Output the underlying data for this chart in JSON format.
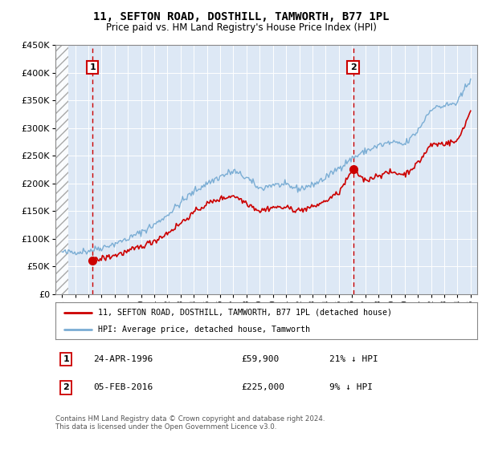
{
  "title": "11, SEFTON ROAD, DOSTHILL, TAMWORTH, B77 1PL",
  "subtitle": "Price paid vs. HM Land Registry's House Price Index (HPI)",
  "legend_line1": "11, SEFTON ROAD, DOSTHILL, TAMWORTH, B77 1PL (detached house)",
  "legend_line2": "HPI: Average price, detached house, Tamworth",
  "annotation1": "24-APR-1996",
  "annotation1_price": "£59,900",
  "annotation1_hpi": "21% ↓ HPI",
  "annotation2": "05-FEB-2016",
  "annotation2_price": "£225,000",
  "annotation2_hpi": "9% ↓ HPI",
  "footnote": "Contains HM Land Registry data © Crown copyright and database right 2024.\nThis data is licensed under the Open Government Licence v3.0.",
  "sale1_x": 1996.31,
  "sale1_y": 59900,
  "sale2_x": 2016.09,
  "sale2_y": 225000,
  "ylim": [
    0,
    450000
  ],
  "xlim": [
    1993.5,
    2025.5
  ],
  "yticks": [
    0,
    50000,
    100000,
    150000,
    200000,
    250000,
    300000,
    350000,
    400000,
    450000
  ],
  "xticks": [
    1994,
    1995,
    1996,
    1997,
    1998,
    1999,
    2000,
    2001,
    2002,
    2003,
    2004,
    2005,
    2006,
    2007,
    2008,
    2009,
    2010,
    2011,
    2012,
    2013,
    2014,
    2015,
    2016,
    2017,
    2018,
    2019,
    2020,
    2021,
    2022,
    2023,
    2024,
    2025
  ],
  "hpi_color": "#7aadd4",
  "sale_color": "#cc0000",
  "dashed_line_color": "#cc0000",
  "plot_bg_color": "#dde8f5",
  "hatch_region_end": 1994.5
}
